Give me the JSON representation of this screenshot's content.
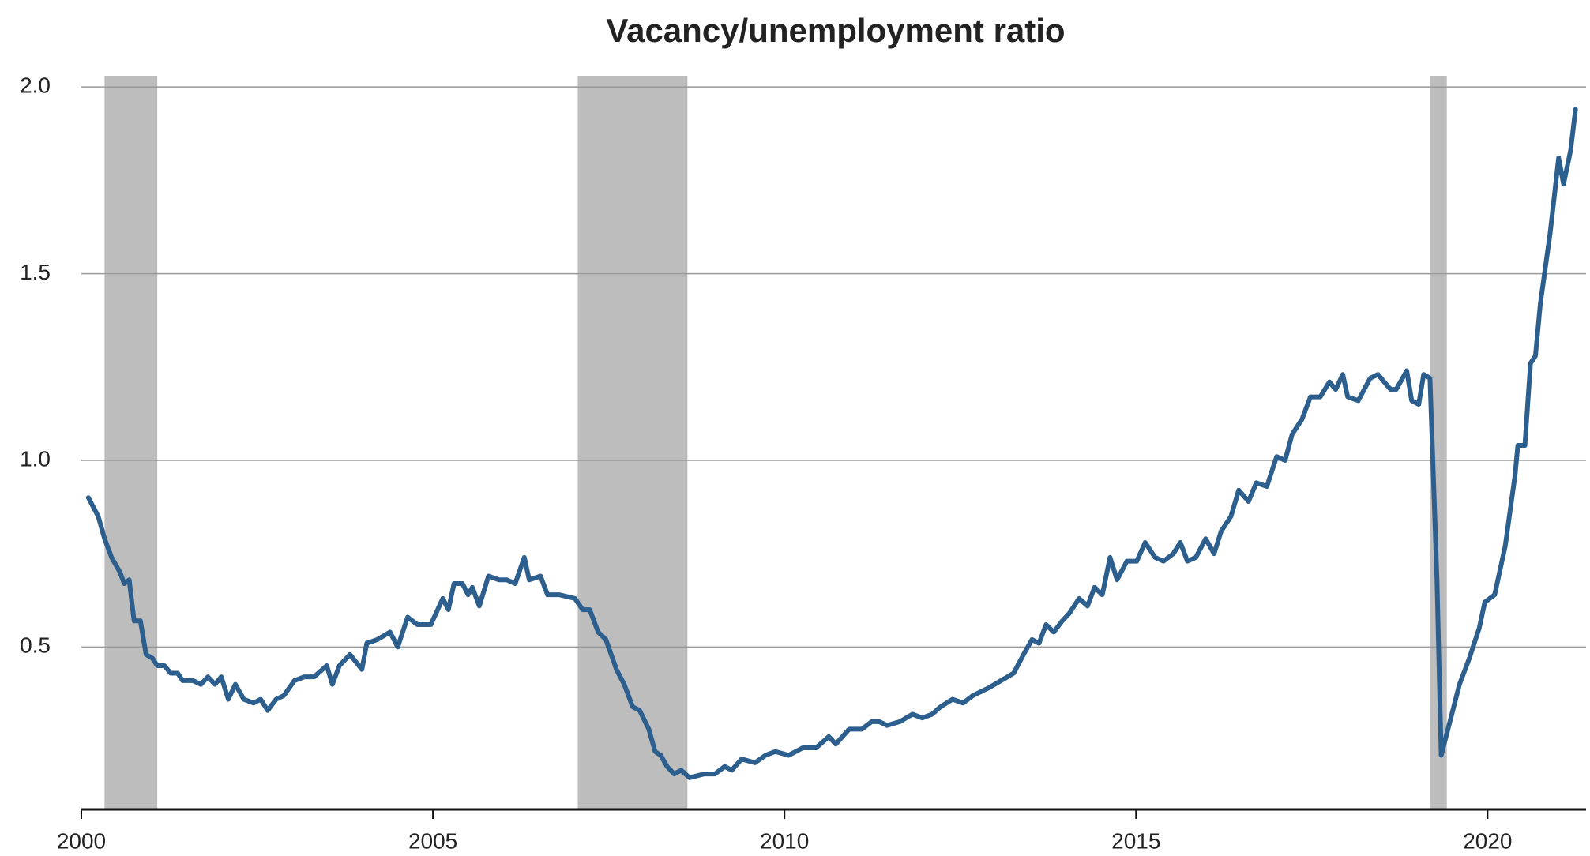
{
  "chart_data": {
    "type": "line",
    "title": "Vacancy/unemployment ratio",
    "xlim": [
      2000,
      2021.4
    ],
    "ylim": [
      0.065,
      2.03
    ],
    "xticks": [
      2000,
      2005,
      2010,
      2015,
      2020
    ],
    "yticks": [
      {
        "value": 0.5,
        "label": "0.5"
      },
      {
        "value": 1.0,
        "label": "1.0"
      },
      {
        "value": 1.5,
        "label": "1.5"
      },
      {
        "value": 2.0,
        "label": "2.0"
      }
    ],
    "grid": true,
    "shade_color": "#bdbdbd",
    "shaded_periods": [
      [
        2000.33,
        2001.08
      ],
      [
        2007.06,
        2008.62
      ],
      [
        2019.18,
        2019.42
      ]
    ],
    "x": [
      2000.1,
      2000.24,
      2000.33,
      2000.43,
      2000.55,
      2000.61,
      2000.68,
      2000.75,
      2000.84,
      2000.92,
      2001.01,
      2001.08,
      2001.18,
      2001.27,
      2001.37,
      2001.44,
      2001.59,
      2001.7,
      2001.8,
      2001.9,
      2001.99,
      2002.09,
      2002.19,
      2002.31,
      2002.45,
      2002.55,
      2002.65,
      2002.77,
      2002.88,
      2003.03,
      2003.17,
      2003.31,
      2003.49,
      2003.57,
      2003.67,
      2003.82,
      2003.99,
      2004.06,
      2004.21,
      2004.39,
      2004.5,
      2004.64,
      2004.78,
      2004.97,
      2005.14,
      2005.22,
      2005.3,
      2005.42,
      2005.5,
      2005.56,
      2005.66,
      2005.79,
      2005.94,
      2006.05,
      2006.17,
      2006.3,
      2006.37,
      2006.53,
      2006.63,
      2006.8,
      2007.02,
      2007.13,
      2007.23,
      2007.35,
      2007.46,
      2007.61,
      2007.72,
      2007.84,
      2007.94,
      2008.07,
      2008.16,
      2008.24,
      2008.33,
      2008.43,
      2008.53,
      2008.65,
      2008.86,
      2009.01,
      2009.15,
      2009.25,
      2009.39,
      2009.58,
      2009.73,
      2009.87,
      2010.06,
      2010.26,
      2010.45,
      2010.63,
      2010.73,
      2010.92,
      2011.1,
      2011.24,
      2011.35,
      2011.46,
      2011.64,
      2011.82,
      2011.96,
      2012.1,
      2012.22,
      2012.39,
      2012.54,
      2012.68,
      2012.9,
      2013.08,
      2013.26,
      2013.4,
      2013.52,
      2013.62,
      2013.72,
      2013.83,
      2013.95,
      2014.05,
      2014.19,
      2014.31,
      2014.41,
      2014.52,
      2014.63,
      2014.73,
      2014.87,
      2015.01,
      2015.13,
      2015.27,
      2015.39,
      2015.53,
      2015.63,
      2015.73,
      2015.85,
      2015.99,
      2016.11,
      2016.21,
      2016.35,
      2016.46,
      2016.6,
      2016.71,
      2016.86,
      2017.0,
      2017.12,
      2017.22,
      2017.36,
      2017.48,
      2017.62,
      2017.75,
      2017.84,
      2017.94,
      2018.01,
      2018.16,
      2018.33,
      2018.44,
      2018.62,
      2018.7,
      2018.85,
      2018.92,
      2019.02,
      2019.09,
      2019.18,
      2019.28,
      2019.34,
      2019.45,
      2019.6,
      2019.74,
      2019.88,
      2019.96,
      2020.1,
      2020.25,
      2020.39,
      2020.43,
      2020.53,
      2020.61,
      2020.68,
      2020.75,
      2020.89,
      2021.01,
      2021.08,
      2021.18,
      2021.25
    ],
    "series": [
      {
        "color": "#2c5f8e",
        "values": [
          0.9,
          0.85,
          0.79,
          0.74,
          0.7,
          0.67,
          0.68,
          0.57,
          0.57,
          0.48,
          0.47,
          0.45,
          0.45,
          0.43,
          0.43,
          0.41,
          0.41,
          0.4,
          0.42,
          0.4,
          0.42,
          0.36,
          0.4,
          0.36,
          0.35,
          0.36,
          0.33,
          0.36,
          0.37,
          0.41,
          0.42,
          0.42,
          0.45,
          0.4,
          0.45,
          0.48,
          0.44,
          0.51,
          0.52,
          0.54,
          0.5,
          0.58,
          0.56,
          0.56,
          0.63,
          0.6,
          0.67,
          0.67,
          0.64,
          0.66,
          0.61,
          0.69,
          0.68,
          0.68,
          0.67,
          0.74,
          0.68,
          0.69,
          0.64,
          0.64,
          0.63,
          0.6,
          0.6,
          0.54,
          0.52,
          0.44,
          0.4,
          0.34,
          0.33,
          0.28,
          0.22,
          0.21,
          0.18,
          0.16,
          0.17,
          0.15,
          0.16,
          0.16,
          0.18,
          0.17,
          0.2,
          0.19,
          0.21,
          0.22,
          0.21,
          0.23,
          0.23,
          0.26,
          0.24,
          0.28,
          0.28,
          0.3,
          0.3,
          0.29,
          0.3,
          0.32,
          0.31,
          0.32,
          0.34,
          0.36,
          0.35,
          0.37,
          0.39,
          0.41,
          0.43,
          0.48,
          0.52,
          0.51,
          0.56,
          0.54,
          0.57,
          0.59,
          0.63,
          0.61,
          0.66,
          0.64,
          0.74,
          0.68,
          0.73,
          0.73,
          0.78,
          0.74,
          0.73,
          0.75,
          0.78,
          0.73,
          0.74,
          0.79,
          0.75,
          0.81,
          0.85,
          0.92,
          0.89,
          0.94,
          0.93,
          1.01,
          1.0,
          1.07,
          1.11,
          1.17,
          1.17,
          1.21,
          1.19,
          1.23,
          1.17,
          1.16,
          1.22,
          1.23,
          1.19,
          1.19,
          1.24,
          1.16,
          1.15,
          1.23,
          1.22,
          0.68,
          0.21,
          0.29,
          0.4,
          0.47,
          0.55,
          0.62,
          0.64,
          0.77,
          0.96,
          1.04,
          1.04,
          1.26,
          1.28,
          1.42,
          1.61,
          1.81,
          1.74,
          1.83,
          1.94
        ]
      }
    ]
  }
}
